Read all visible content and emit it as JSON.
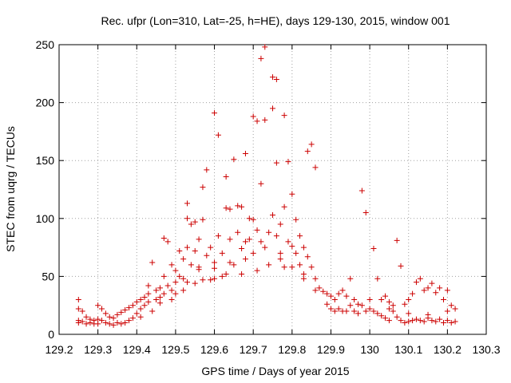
{
  "chart_data": {
    "type": "scatter",
    "title": "Rec. ufpr (Lon=310, Lat=-25, h=HE), days 129-130, 2015, window 001",
    "xlabel": "GPS time / Days of year 2015",
    "ylabel": "STEC from uqrg / TECUs",
    "xlim": [
      129.2,
      130.3
    ],
    "ylim": [
      0,
      250
    ],
    "xticks": [
      "129.2",
      "129.3",
      "129.4",
      "129.5",
      "129.6",
      "129.7",
      "129.8",
      "129.9",
      "130",
      "130.1",
      "130.2",
      "130.3"
    ],
    "yticks": [
      "0",
      "50",
      "100",
      "150",
      "200",
      "250"
    ],
    "grid": true,
    "marker": "plus",
    "color": "#cc0000",
    "series": [
      {
        "points": [
          [
            129.25,
            30
          ],
          [
            129.25,
            22
          ],
          [
            129.25,
            12
          ],
          [
            129.25,
            10
          ],
          [
            129.26,
            20
          ],
          [
            129.26,
            11
          ],
          [
            129.27,
            15
          ],
          [
            129.27,
            9
          ],
          [
            129.28,
            13
          ],
          [
            129.28,
            10
          ],
          [
            129.29,
            12
          ],
          [
            129.29,
            9
          ],
          [
            129.3,
            25
          ],
          [
            129.3,
            13
          ],
          [
            129.3,
            9
          ],
          [
            129.31,
            22
          ],
          [
            129.31,
            12
          ],
          [
            129.32,
            18
          ],
          [
            129.32,
            10
          ],
          [
            129.33,
            15
          ],
          [
            129.33,
            9
          ],
          [
            129.34,
            14
          ],
          [
            129.34,
            8
          ],
          [
            129.35,
            17
          ],
          [
            129.35,
            10
          ],
          [
            129.36,
            19
          ],
          [
            129.36,
            9
          ],
          [
            129.37,
            21
          ],
          [
            129.37,
            10
          ],
          [
            129.38,
            23
          ],
          [
            129.38,
            12
          ],
          [
            129.39,
            25
          ],
          [
            129.39,
            14
          ],
          [
            129.4,
            28
          ],
          [
            129.4,
            18
          ],
          [
            129.41,
            30
          ],
          [
            129.41,
            22
          ],
          [
            129.42,
            32
          ],
          [
            129.42,
            25
          ],
          [
            129.43,
            35
          ],
          [
            129.43,
            28
          ],
          [
            129.43,
            42
          ],
          [
            129.44,
            62
          ],
          [
            129.45,
            38
          ],
          [
            129.45,
            30
          ],
          [
            129.46,
            40
          ],
          [
            129.46,
            32
          ],
          [
            129.47,
            83
          ],
          [
            129.47,
            50
          ],
          [
            129.47,
            35
          ],
          [
            129.48,
            80
          ],
          [
            129.48,
            42
          ],
          [
            129.49,
            60
          ],
          [
            129.49,
            30
          ],
          [
            129.5,
            55
          ],
          [
            129.5,
            45
          ],
          [
            129.5,
            35
          ],
          [
            129.51,
            72
          ],
          [
            129.51,
            50
          ],
          [
            129.52,
            65
          ],
          [
            129.52,
            38
          ],
          [
            129.53,
            113
          ],
          [
            129.53,
            100
          ],
          [
            129.53,
            75
          ],
          [
            129.53,
            45
          ],
          [
            129.54,
            95
          ],
          [
            129.54,
            60
          ],
          [
            129.55,
            97
          ],
          [
            129.55,
            72
          ],
          [
            129.55,
            44
          ],
          [
            129.56,
            82
          ],
          [
            129.56,
            56
          ],
          [
            129.57,
            127
          ],
          [
            129.57,
            99
          ],
          [
            129.57,
            47
          ],
          [
            129.58,
            142
          ],
          [
            129.58,
            68
          ],
          [
            129.59,
            75
          ],
          [
            129.59,
            47
          ],
          [
            129.6,
            191
          ],
          [
            129.6,
            62
          ],
          [
            129.6,
            48
          ],
          [
            129.61,
            172
          ],
          [
            129.61,
            85
          ],
          [
            129.62,
            70
          ],
          [
            129.62,
            50
          ],
          [
            129.63,
            136
          ],
          [
            129.63,
            109
          ],
          [
            129.63,
            52
          ],
          [
            129.64,
            108
          ],
          [
            129.64,
            82
          ],
          [
            129.65,
            151
          ],
          [
            129.65,
            60
          ],
          [
            129.66,
            111
          ],
          [
            129.66,
            88
          ],
          [
            129.67,
            110
          ],
          [
            129.67,
            74
          ],
          [
            129.67,
            52
          ],
          [
            129.68,
            156
          ],
          [
            129.68,
            65
          ],
          [
            129.69,
            100
          ],
          [
            129.69,
            82
          ],
          [
            129.7,
            188
          ],
          [
            129.7,
            99
          ],
          [
            129.71,
            184
          ],
          [
            129.71,
            90
          ],
          [
            129.71,
            55
          ],
          [
            129.72,
            130
          ],
          [
            129.72,
            80
          ],
          [
            129.72,
            238
          ],
          [
            129.73,
            185
          ],
          [
            129.73,
            248
          ],
          [
            129.74,
            88
          ],
          [
            129.74,
            60
          ],
          [
            129.75,
            222
          ],
          [
            129.75,
            195
          ],
          [
            129.75,
            103
          ],
          [
            129.76,
            220
          ],
          [
            129.76,
            148
          ],
          [
            129.76,
            85
          ],
          [
            129.77,
            95
          ],
          [
            129.77,
            70
          ],
          [
            129.78,
            189
          ],
          [
            129.78,
            110
          ],
          [
            129.78,
            58
          ],
          [
            129.79,
            149
          ],
          [
            129.79,
            80
          ],
          [
            129.8,
            121
          ],
          [
            129.8,
            76
          ],
          [
            129.81,
            99
          ],
          [
            129.81,
            70
          ],
          [
            129.82,
            85
          ],
          [
            129.82,
            60
          ],
          [
            129.83,
            75
          ],
          [
            129.83,
            52
          ],
          [
            129.84,
            158
          ],
          [
            129.84,
            67
          ],
          [
            129.85,
            164
          ],
          [
            129.85,
            58
          ],
          [
            129.86,
            144
          ],
          [
            129.86,
            48
          ],
          [
            129.87,
            40
          ],
          [
            129.88,
            37
          ],
          [
            129.89,
            35
          ],
          [
            129.89,
            26
          ],
          [
            129.9,
            33
          ],
          [
            129.9,
            22
          ],
          [
            129.91,
            30
          ],
          [
            129.91,
            20
          ],
          [
            129.92,
            35
          ],
          [
            129.92,
            22
          ],
          [
            129.93,
            38
          ],
          [
            129.93,
            20
          ],
          [
            129.94,
            33
          ],
          [
            129.94,
            20
          ],
          [
            129.95,
            48
          ],
          [
            129.95,
            25
          ],
          [
            129.96,
            30
          ],
          [
            129.96,
            20
          ],
          [
            129.97,
            26
          ],
          [
            129.97,
            18
          ],
          [
            129.98,
            124
          ],
          [
            129.98,
            25
          ],
          [
            129.99,
            105
          ],
          [
            129.99,
            20
          ],
          [
            130.0,
            30
          ],
          [
            130.0,
            22
          ],
          [
            130.01,
            74
          ],
          [
            130.01,
            20
          ],
          [
            130.02,
            48
          ],
          [
            130.02,
            18
          ],
          [
            130.03,
            30
          ],
          [
            130.03,
            16
          ],
          [
            130.04,
            33
          ],
          [
            130.04,
            14
          ],
          [
            130.05,
            28
          ],
          [
            130.05,
            12
          ],
          [
            130.06,
            25
          ],
          [
            130.06,
            20
          ],
          [
            130.07,
            81
          ],
          [
            130.07,
            15
          ],
          [
            130.08,
            59
          ],
          [
            130.08,
            12
          ],
          [
            130.09,
            26
          ],
          [
            130.09,
            10
          ],
          [
            130.1,
            30
          ],
          [
            130.1,
            11
          ],
          [
            130.11,
            35
          ],
          [
            130.11,
            12
          ],
          [
            130.12,
            45
          ],
          [
            130.12,
            13
          ],
          [
            130.13,
            48
          ],
          [
            130.13,
            12
          ],
          [
            130.14,
            38
          ],
          [
            130.14,
            11
          ],
          [
            130.15,
            40
          ],
          [
            130.15,
            14
          ],
          [
            130.16,
            44
          ],
          [
            130.16,
            12
          ],
          [
            130.17,
            36
          ],
          [
            130.17,
            11
          ],
          [
            130.18,
            40
          ],
          [
            130.18,
            13
          ],
          [
            130.19,
            30
          ],
          [
            130.19,
            10
          ],
          [
            130.2,
            38
          ],
          [
            130.2,
            12
          ],
          [
            130.21,
            25
          ],
          [
            130.21,
            10
          ],
          [
            130.22,
            22
          ],
          [
            130.22,
            11
          ],
          [
            129.41,
            15
          ],
          [
            129.44,
            20
          ],
          [
            129.46,
            27
          ],
          [
            129.49,
            38
          ],
          [
            129.52,
            48
          ],
          [
            129.56,
            58
          ],
          [
            129.6,
            57
          ],
          [
            129.64,
            62
          ],
          [
            129.68,
            80
          ],
          [
            129.7,
            70
          ],
          [
            129.73,
            75
          ],
          [
            129.77,
            65
          ],
          [
            129.8,
            58
          ],
          [
            129.83,
            48
          ],
          [
            129.86,
            38
          ],
          [
            130.05,
            22
          ],
          [
            130.1,
            18
          ],
          [
            130.15,
            17
          ],
          [
            130.2,
            20
          ]
        ]
      }
    ]
  }
}
